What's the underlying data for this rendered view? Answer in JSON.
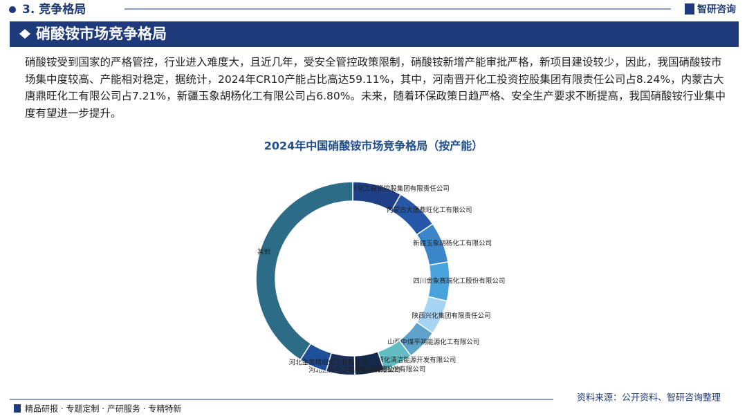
{
  "header": {
    "section": "3. 竞争格局",
    "brand": "智研咨询",
    "banner": "硝酸铵市场竞争格局"
  },
  "paragraph": "硝酸铵受到国家的严格管控，行业进入难度大，且近几年，受安全管控政策限制，硝酸铵新增产能审批严格，新项目建设较少，因此，我国硝酸铵市场集中度较高、产能相对稳定，据统计，2024年CR10产能占比高达59.11%，其中，河南晋开化工投资控股集团有限责任公司占8.24%，内蒙古大唐鼎旺化工有限公司占7.21%，新疆玉象胡杨化工有限公司占6.80%。未来，随着环保政策日趋严格、安全生产要求不断提高，我国硝酸铵行业集中度有望进一步提升。",
  "footer": {
    "left": "精品研报 · 专题定制 · 产研服务 · 专精特新",
    "source": "资料来源：公开资料、智研咨询整理"
  },
  "chart_data": {
    "type": "donut",
    "title": "2024年中国硝酸铵市场竞争格局（按产能）",
    "categories": [
      "河南晋开化工投资控股集团有限责任公司",
      "内蒙古大唐鼎旺化工有限公司",
      "新疆玉象胡杨化工有限公司",
      "四川金象赛瑞化工股份有限公司",
      "陕西兴化集团有限责任公司",
      "山西中煤平朔能源化工有限公司",
      "云南解化清洁能源开发有限公司",
      "天脊煤化工集团股份有限公司",
      "河北正元化工集团股份有限公司",
      "河北金奥精细化工有限公司",
      "其他"
    ],
    "values": [
      8.24,
      7.21,
      6.8,
      6.5,
      5.8,
      5.2,
      5.0,
      4.9,
      4.8,
      4.66,
      40.89
    ],
    "colors": [
      "#1f3f86",
      "#2757a8",
      "#3a86c8",
      "#4aa3dc",
      "#a7d4f2",
      "#5fa3cc",
      "#62bcc2",
      "#142a4c",
      "#1b2f5a",
      "#1d4f9a",
      "#2d6c86"
    ]
  }
}
